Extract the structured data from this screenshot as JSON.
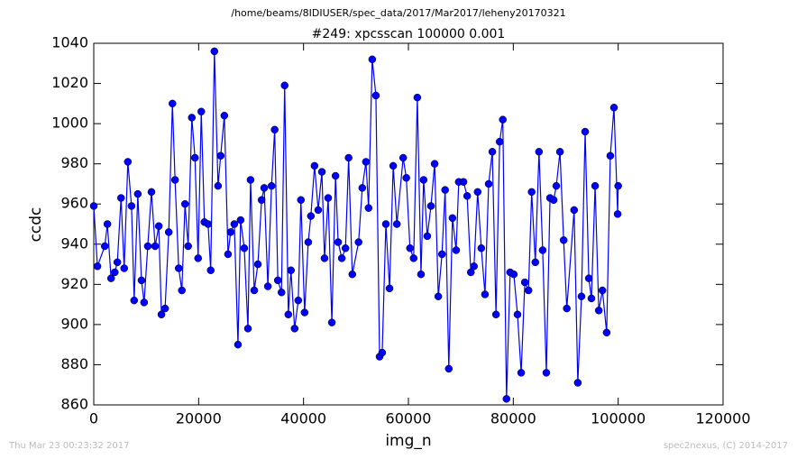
{
  "chart_data": {
    "type": "line",
    "suptitle": "/home/beams/8IDIUSER/spec_data/2017/Mar2017/leheny20170321",
    "title": "#249: xpcsscan 100000 0.001",
    "x_label": "img_n",
    "y_label": "ccdc",
    "annotations": [
      "Thu Mar 23 00:23:32 2017",
      "spec2nexus, (C) 2014-2017"
    ],
    "x": [
      0,
      700,
      2100,
      2600,
      3300,
      4000,
      4500,
      5200,
      5800,
      6500,
      7200,
      7700,
      8400,
      9100,
      9600,
      10300,
      11000,
      11700,
      12400,
      12900,
      13600,
      14300,
      15000,
      15500,
      16200,
      16800,
      17400,
      18000,
      18700,
      19300,
      19900,
      20500,
      21100,
      21800,
      22300,
      23000,
      23700,
      24200,
      24900,
      25600,
      26100,
      26800,
      27500,
      28000,
      28700,
      29400,
      29900,
      30600,
      31300,
      32000,
      32500,
      33200,
      33900,
      34500,
      35100,
      35800,
      36400,
      37100,
      37600,
      38300,
      39000,
      39500,
      40200,
      40900,
      41400,
      42100,
      42800,
      43500,
      44000,
      44700,
      45400,
      46100,
      46600,
      47300,
      48000,
      48600,
      49300,
      50500,
      51200,
      51900,
      52400,
      53100,
      53800,
      54500,
      55000,
      55700,
      56400,
      57100,
      57800,
      59000,
      59600,
      60300,
      61000,
      61700,
      62400,
      62900,
      63600,
      64300,
      65000,
      65700,
      66400,
      67000,
      67700,
      68400,
      69100,
      69600,
      70500,
      71200,
      71900,
      72500,
      73200,
      73900,
      74600,
      75300,
      76000,
      76700,
      77400,
      78000,
      78700,
      79400,
      80100,
      80800,
      81500,
      82200,
      82900,
      83500,
      84200,
      84900,
      85600,
      86300,
      87000,
      87700,
      88200,
      88900,
      89600,
      90200,
      91600,
      92300,
      93000,
      93700,
      94400,
      94900,
      95600,
      96300,
      97000,
      97800,
      98500,
      99200,
      99900,
      100000
    ],
    "series": [
      {
        "name": "ccdc",
        "color": "#0000ff",
        "values": [
          959,
          929,
          939,
          950,
          923,
          926,
          931,
          963,
          928,
          981,
          959,
          912,
          965,
          922,
          911,
          939,
          966,
          939,
          949,
          905,
          908,
          946,
          1010,
          972,
          928,
          917,
          960,
          939,
          1003,
          983,
          933,
          1006,
          951,
          950,
          927,
          1036,
          969,
          984,
          1004,
          935,
          946,
          950,
          890,
          952,
          938,
          898,
          972,
          917,
          930,
          962,
          968,
          919,
          969,
          997,
          922,
          916,
          1019,
          905,
          927,
          898,
          912,
          962,
          906,
          941,
          954,
          979,
          957,
          976,
          933,
          963,
          901,
          974,
          941,
          933,
          938,
          983,
          925,
          941,
          968,
          981,
          958,
          1032,
          1014,
          884,
          886,
          950,
          918,
          979,
          950,
          983,
          973,
          938,
          933,
          1013,
          925,
          972,
          944,
          959,
          980,
          914,
          935,
          967,
          878,
          953,
          937,
          971,
          971,
          964,
          926,
          929,
          966,
          938,
          915,
          970,
          986,
          905,
          991,
          1002,
          863,
          926,
          925,
          905,
          876,
          921,
          917,
          966,
          931,
          986,
          937,
          876,
          963,
          962,
          969,
          986,
          942,
          908,
          957,
          871,
          914,
          996,
          923,
          913,
          969,
          907,
          917,
          896,
          984,
          1008,
          955,
          969
        ]
      }
    ],
    "xlim": [
      0,
      120000
    ],
    "xticks": [
      0,
      20000,
      40000,
      60000,
      80000,
      100000,
      120000
    ],
    "ylim": [
      860,
      1040
    ],
    "yticks": [
      860,
      880,
      900,
      920,
      940,
      960,
      980,
      1000,
      1020,
      1040
    ]
  }
}
